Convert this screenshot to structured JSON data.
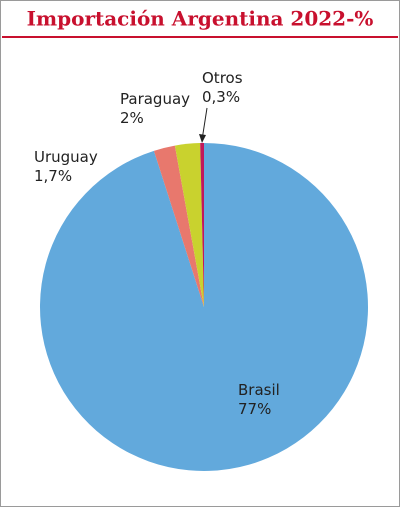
{
  "chart_data": {
    "type": "pie",
    "title": "Importación Argentina 2022-%",
    "categories": [
      "Brasil",
      "Uruguay",
      "Paraguay",
      "Otros"
    ],
    "values": [
      77,
      1.7,
      2,
      0.3
    ],
    "value_labels": [
      "77%",
      "1,7%",
      "2%",
      "0,3%"
    ],
    "colors": [
      "#62a9dc",
      "#e8786d",
      "#c9d22e",
      "#c2185b"
    ]
  }
}
